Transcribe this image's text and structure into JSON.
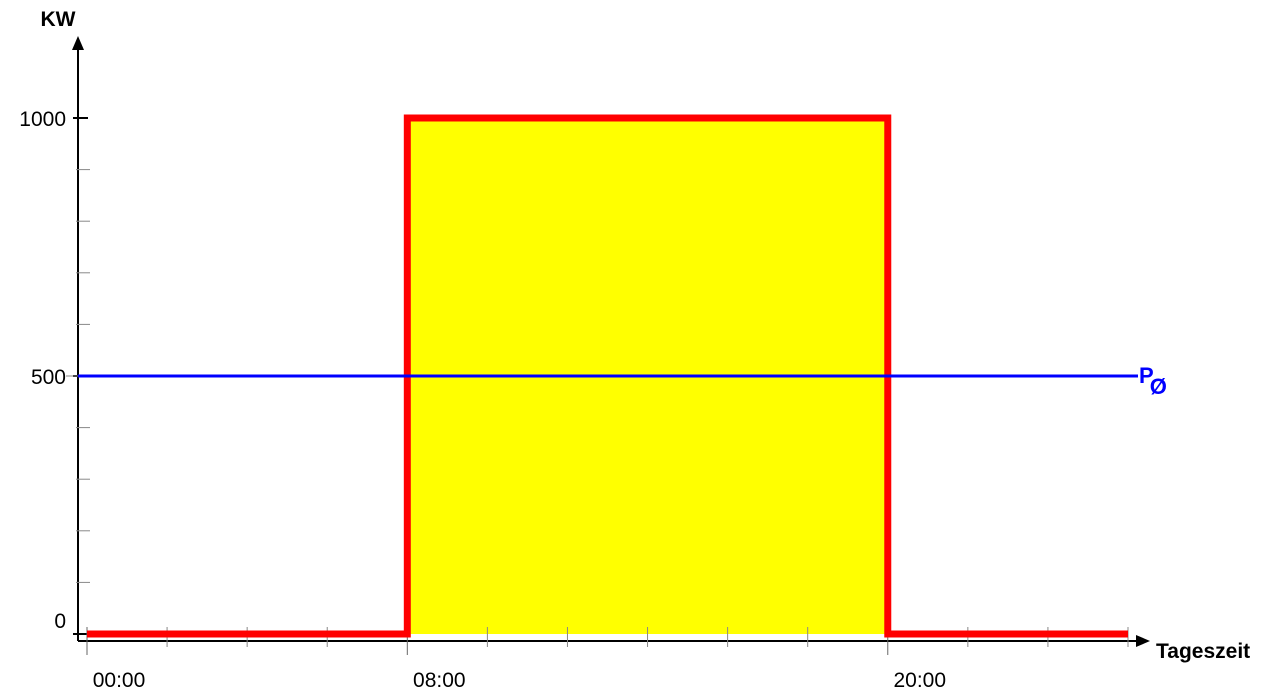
{
  "chart_data": {
    "type": "line",
    "title": "",
    "xlabel": "Tageszeit",
    "ylabel": "KW",
    "xlim": [
      0,
      26
    ],
    "ylim": [
      0,
      1000
    ],
    "x_ticks": [
      0,
      2,
      4,
      6,
      8,
      10,
      12,
      14,
      16,
      18,
      20,
      22,
      24,
      26
    ],
    "x_tick_labels": [
      {
        "x": 0,
        "label": "00:00"
      },
      {
        "x": 8,
        "label": "08:00"
      },
      {
        "x": 20,
        "label": "20:00"
      }
    ],
    "y_ticks": [
      0,
      100,
      200,
      300,
      400,
      500,
      600,
      700,
      800,
      900,
      1000
    ],
    "y_tick_labels": [
      {
        "y": 0,
        "label": "0"
      },
      {
        "y": 500,
        "label": "500"
      },
      {
        "y": 1000,
        "label": "1000"
      }
    ],
    "series": [
      {
        "x": [
          0,
          8,
          8,
          20,
          20,
          26
        ],
        "y": [
          0,
          0,
          1000,
          1000,
          0,
          0
        ],
        "color": "#ff0000",
        "fill": "#ffff00",
        "fill_range": [
          8,
          20
        ]
      }
    ],
    "reference_line": {
      "y": 500,
      "label_main": "P",
      "label_sub": "Ø",
      "color": "#0000ff"
    },
    "y_label_colors": {
      "500": "#0000ff"
    },
    "grid": false,
    "legend": "none",
    "axis_color": "#000000"
  }
}
